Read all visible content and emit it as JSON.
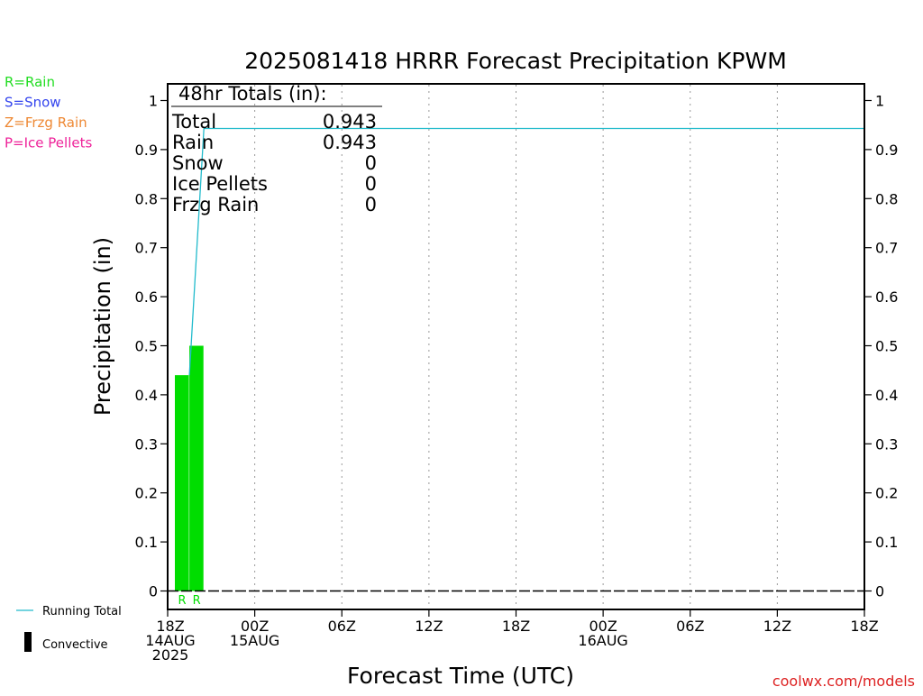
{
  "precip_legend": [
    {
      "label": "R=Rain",
      "color": "#22dd22"
    },
    {
      "label": "S=Snow",
      "color": "#3344ee"
    },
    {
      "label": "Z=Frzg Rain",
      "color": "#ee8833"
    },
    {
      "label": "P=Ice Pellets",
      "color": "#ee2299"
    }
  ],
  "totals": {
    "header": "48hr Totals (in):",
    "rows": [
      {
        "label": "Total",
        "value": "0.943"
      },
      {
        "label": "Rain",
        "value": "0.943"
      },
      {
        "label": "Snow",
        "value": "0"
      },
      {
        "label": "Ice Pellets",
        "value": "0"
      },
      {
        "label": "Frzg Rain",
        "value": "0"
      }
    ]
  },
  "series_legend": {
    "running_total": "Running Total",
    "convective": "Convective"
  },
  "credit": "coolwx.com/models",
  "colors": {
    "rain_bar": "#00dd00",
    "running_total": "#22bbcc",
    "credit": "#dd2222",
    "axes": "#000000",
    "grid": "#999999"
  },
  "chart_data": {
    "type": "bar",
    "title": "2025081418 HRRR Forecast Precipitation KPWM",
    "xlabel": "Forecast Time (UTC)",
    "ylabel": "Precipitation (in)",
    "x_unit": "forecast hour",
    "xlim": [
      0,
      48
    ],
    "ylim": [
      0,
      1.0
    ],
    "yticks": [
      0,
      0.1,
      0.2,
      0.3,
      0.4,
      0.5,
      0.6,
      0.7,
      0.8,
      0.9,
      1
    ],
    "ytick_labels": [
      "0",
      "0.1",
      "0.2",
      "0.3",
      "0.4",
      "0.5",
      "0.6",
      "0.7",
      "0.8",
      "0.9",
      "1"
    ],
    "xticks": [
      {
        "hour": 0,
        "lines": [
          "18Z",
          "14AUG",
          "2025"
        ]
      },
      {
        "hour": 6,
        "lines": [
          "00Z",
          "15AUG"
        ]
      },
      {
        "hour": 12,
        "lines": [
          "06Z"
        ]
      },
      {
        "hour": 18,
        "lines": [
          "12Z"
        ]
      },
      {
        "hour": 24,
        "lines": [
          "18Z"
        ]
      },
      {
        "hour": 30,
        "lines": [
          "00Z",
          "16AUG"
        ]
      },
      {
        "hour": 36,
        "lines": [
          "06Z"
        ]
      },
      {
        "hour": 42,
        "lines": [
          "12Z"
        ]
      },
      {
        "hour": 48,
        "lines": [
          "18Z"
        ]
      }
    ],
    "grid": "vertical dotted at x ticks",
    "bars": [
      {
        "hour": 1,
        "value": 0.44,
        "ptype": "R"
      },
      {
        "hour": 2,
        "value": 0.5,
        "ptype": "R"
      }
    ],
    "series": [
      {
        "name": "Running Total",
        "x": [
          1,
          2,
          48
        ],
        "y": [
          0.44,
          0.943,
          0.943
        ]
      }
    ]
  }
}
